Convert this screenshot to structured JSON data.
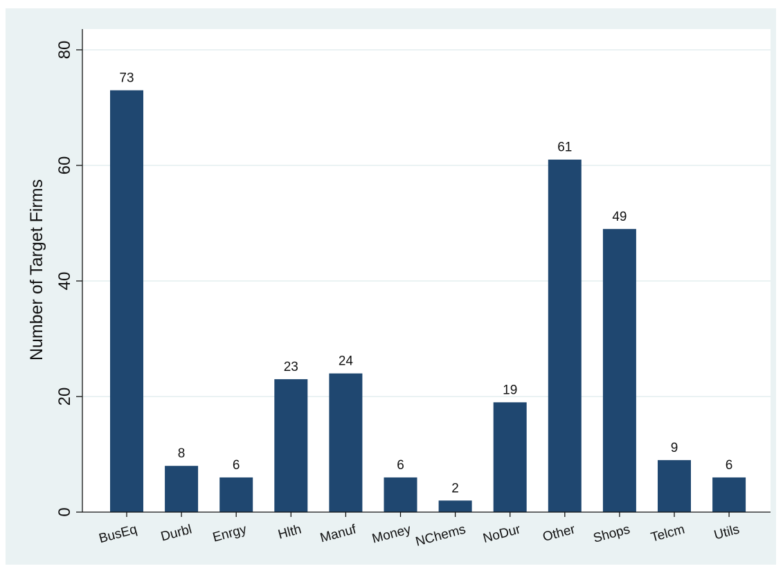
{
  "chart_data": {
    "type": "bar",
    "ylabel": "Number of Target Firms",
    "xlabel": "",
    "ylim": [
      0,
      80
    ],
    "yticks": [
      0,
      20,
      40,
      60,
      80
    ],
    "grid": true,
    "categories": [
      "BusEq",
      "Durbl",
      "Enrgy",
      "Hlth",
      "Manuf",
      "Money",
      "NChems",
      "NoDur",
      "Other",
      "Shops",
      "Telcm",
      "Utils"
    ],
    "values": [
      73,
      8,
      6,
      23,
      24,
      6,
      2,
      19,
      61,
      49,
      9,
      6
    ],
    "bar_color": "#1f4770",
    "background_color": "#eaf2f3",
    "plot_background_color": "#ffffff",
    "grid_color": "#eaf2f3"
  }
}
